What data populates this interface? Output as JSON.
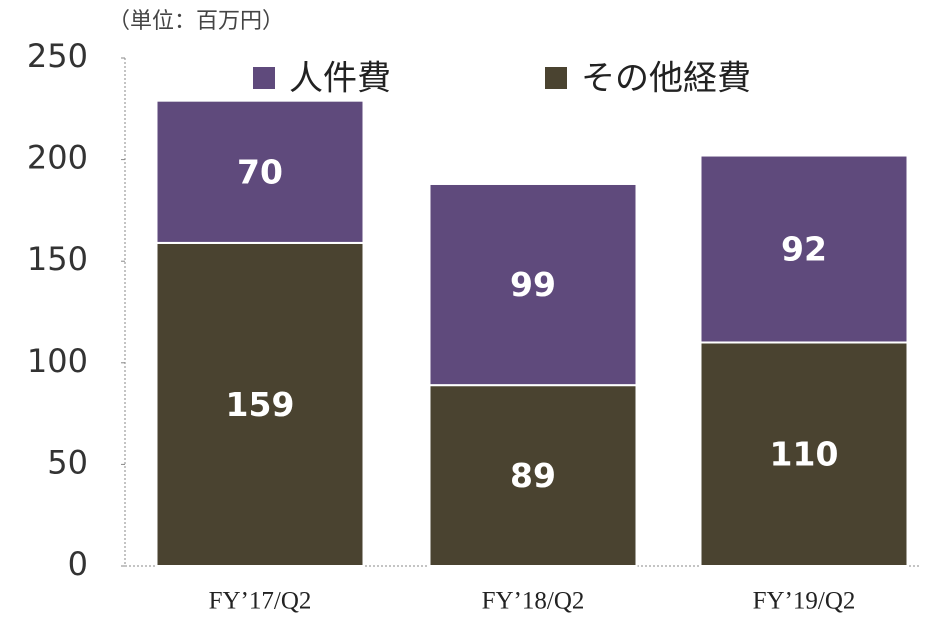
{
  "chart_data": {
    "type": "stacked_bar",
    "unit_note": "（単位：百万円）",
    "categories": [
      "FY’17/Q2",
      "FY’18/Q2",
      "FY’19/Q2"
    ],
    "series": [
      {
        "name": "人件費",
        "color": "#5f4a7c",
        "values": [
          70,
          99,
          92
        ]
      },
      {
        "name": "その他経費",
        "color": "#4a4330",
        "values": [
          159,
          89,
          110
        ]
      }
    ],
    "ylim": [
      0,
      250
    ],
    "yticks": [
      0,
      50,
      100,
      150,
      200,
      250
    ],
    "legend": "top"
  }
}
